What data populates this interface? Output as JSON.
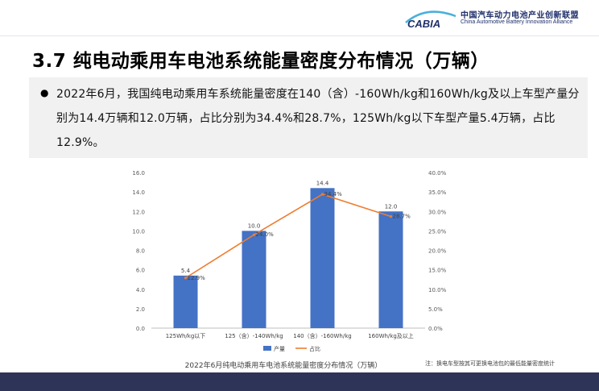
{
  "header": {
    "logo_wordmark": "CABIA",
    "org_name_cn": "中国汽车动力电池产业创新联盟",
    "org_name_en": "China Automotive Battery Innovation Alliance"
  },
  "page_title": "3.7 纯电动乘用车电池系统能量密度分布情况（万辆）",
  "summary": {
    "bullet": "●",
    "text": "2022年6月，我国纯电动乘用车系统能量密度在140（含）-160Wh/kg和160Wh/kg及以上车型产量分别为14.4万辆和12.0万辆，占比分别为34.4%和28.7%，125Wh/kg以下车型产量5.4万辆，占比12.9%。"
  },
  "chart_data": {
    "type": "bar",
    "title": "2022年6月纯电动乘用车电池系统能量密度分布情况（万辆）",
    "categories": [
      "125Wh/kg以下",
      "125（含）-140Wh/kg",
      "140（含）-160Wh/kg",
      "160Wh/kg及以上"
    ],
    "series": [
      {
        "name": "产量",
        "type": "bar",
        "axis": "left",
        "color": "#4472c4",
        "values": [
          5.4,
          10.0,
          14.4,
          12.0
        ],
        "labels": [
          "5.4",
          "10.0",
          "14.4",
          "12.0"
        ]
      },
      {
        "name": "占比",
        "type": "line",
        "axis": "right",
        "color": "#ed7d31",
        "values": [
          12.9,
          24.0,
          34.4,
          28.7
        ],
        "labels": [
          "12.9%",
          "24.0%",
          "34.4%",
          "28.7%"
        ]
      }
    ],
    "y_left": {
      "min": 0,
      "max": 16,
      "ticks": [
        "0.0",
        "2.0",
        "4.0",
        "6.0",
        "8.0",
        "10.0",
        "12.0",
        "14.0",
        "16.0"
      ]
    },
    "y_right": {
      "min": 0,
      "max": 40,
      "ticks": [
        "0.0%",
        "5.0%",
        "10.0%",
        "15.0%",
        "20.0%",
        "25.0%",
        "30.0%",
        "35.0%",
        "40.0%"
      ]
    },
    "grid": false,
    "legend": "bottom-center"
  },
  "note": "注：换电车型按其可更换电池包的最低能量密度统计",
  "colors": {
    "brand_navy": "#1f2f6b",
    "bottom_band": "#2e3457",
    "bar": "#4472c4",
    "line": "#ed7d31"
  }
}
